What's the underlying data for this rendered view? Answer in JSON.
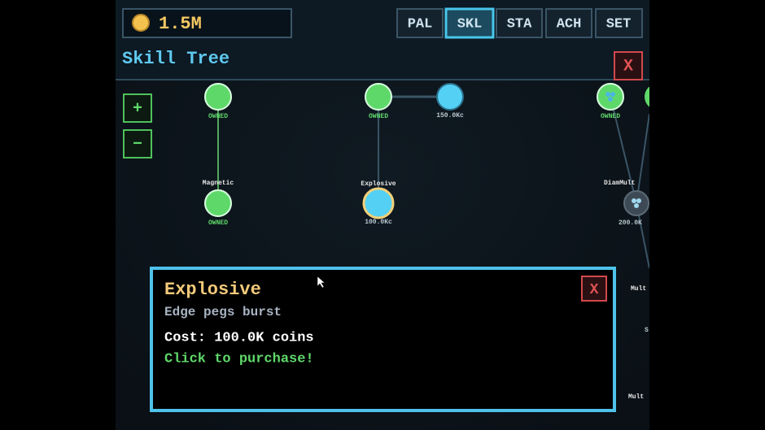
{
  "header": {
    "coins": "1.5M",
    "tabs": [
      "PAL",
      "SKL",
      "STA",
      "ACH",
      "SET"
    ],
    "title": "Skill Tree",
    "close": "X"
  },
  "zoom": {
    "in": "+",
    "out": "−"
  },
  "nodes": [
    {
      "status": "OWNED"
    },
    {
      "status": "OWNED"
    },
    {
      "status": "150.0Kc"
    },
    {
      "status": "OWNED"
    },
    {
      "label": "Magnetic",
      "status": "OWNED"
    },
    {
      "label": "Explosive",
      "status": "100.0Kc"
    },
    {
      "label": "DiamMult",
      "status": "200.0K"
    },
    {
      "label": "Mult"
    },
    {
      "label": "S"
    },
    {
      "label": "Mult"
    }
  ],
  "popup": {
    "title": "Explosive",
    "description": "Edge pegs burst",
    "cost": "Cost: 100.0K coins",
    "action": "Click to purchase!",
    "close": "X"
  }
}
